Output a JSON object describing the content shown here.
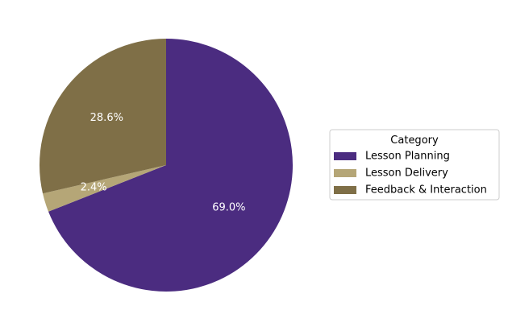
{
  "chart_data": {
    "type": "pie",
    "title": "",
    "categories": [
      "Lesson Planning",
      "Lesson Delivery",
      "Feedback & Interaction"
    ],
    "values": [
      69.0,
      2.4,
      28.6
    ],
    "labels": [
      "69.0%",
      "2.4%",
      "28.6%"
    ],
    "colors": [
      "#4b2c80",
      "#b5a677",
      "#7f6f47"
    ],
    "start_angle_deg": 90,
    "direction": "clockwise",
    "legend": {
      "title": "Category",
      "placement": "right"
    }
  }
}
